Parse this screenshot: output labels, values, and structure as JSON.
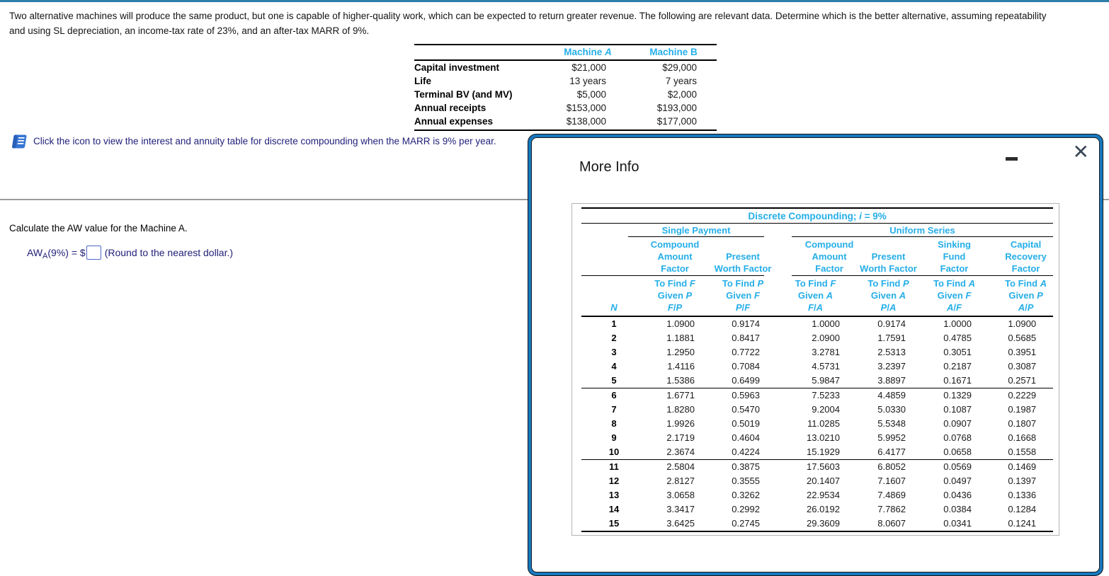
{
  "problem": {
    "line1": "Two alternative machines will produce the same product, but one is capable of higher-quality work, which can be expected to return greater revenue. The following are relevant data. Determine which is the better alternative, assuming repeatability",
    "line2": "and using SL depreciation, an income-tax rate of 23%, and an after-tax MARR of 9%."
  },
  "machine_table": {
    "headers": [
      "Machine A",
      "Machine B"
    ],
    "rows": [
      {
        "label": "Capital investment",
        "a": "$21,000",
        "b": "$29,000"
      },
      {
        "label": "Life",
        "a": "13 years",
        "b": "7 years"
      },
      {
        "label": "Terminal BV (and MV)",
        "a": "$5,000",
        "b": "$2,000"
      },
      {
        "label": "Annual receipts",
        "a": "$153,000",
        "b": "$193,000"
      },
      {
        "label": "Annual expenses",
        "a": "$138,000",
        "b": "$177,000"
      }
    ]
  },
  "icon_note": {
    "icon": "table-book-icon",
    "text": "Click the icon to view the interest and annuity table for discrete compounding when the MARR is 9% per year."
  },
  "question": {
    "prompt": "Calculate the AW value for the Machine A.",
    "formula_prefix": "AW",
    "formula_sub": "A",
    "formula_mid": "(9%) = $",
    "input_value": "",
    "round_note": "(Round to the nearest dollar.)"
  },
  "modal": {
    "title": "More Info",
    "minimize_icon": "minus-icon",
    "close_glyph": "✕",
    "compounding": {
      "title": "Discrete Compounding; i = 9%",
      "groups": [
        {
          "label": "Single Payment"
        },
        {
          "label": "Uniform Series"
        }
      ],
      "n_label": "N",
      "columns": [
        {
          "header": "Compound\nAmount\nFactor",
          "sub": "To Find F\nGiven P\nF/P"
        },
        {
          "header": "Present\nWorth Factor",
          "sub": "To Find P\nGiven F\nP/F"
        },
        {
          "header": "Compound\nAmount\nFactor",
          "sub": "To Find F\nGiven A\nF/A"
        },
        {
          "header": "Present\nWorth Factor",
          "sub": "To Find P\nGiven A\nP/A"
        },
        {
          "header": "Sinking\nFund\nFactor",
          "sub": "To Find A\nGiven F\nA/F"
        },
        {
          "header": "Capital\nRecovery\nFactor",
          "sub": "To Find A\nGiven P\nA/P"
        }
      ],
      "rows": [
        {
          "n": "1",
          "values": [
            "1.0900",
            "0.9174",
            "1.0000",
            "0.9174",
            "1.0000",
            "1.0900"
          ]
        },
        {
          "n": "2",
          "values": [
            "1.1881",
            "0.8417",
            "2.0900",
            "1.7591",
            "0.4785",
            "0.5685"
          ]
        },
        {
          "n": "3",
          "values": [
            "1.2950",
            "0.7722",
            "3.2781",
            "2.5313",
            "0.3051",
            "0.3951"
          ]
        },
        {
          "n": "4",
          "values": [
            "1.4116",
            "0.7084",
            "4.5731",
            "3.2397",
            "0.2187",
            "0.3087"
          ]
        },
        {
          "n": "5",
          "values": [
            "1.5386",
            "0.6499",
            "5.9847",
            "3.8897",
            "0.1671",
            "0.2571"
          ]
        },
        {
          "n": "6",
          "values": [
            "1.6771",
            "0.5963",
            "7.5233",
            "4.4859",
            "0.1329",
            "0.2229"
          ]
        },
        {
          "n": "7",
          "values": [
            "1.8280",
            "0.5470",
            "9.2004",
            "5.0330",
            "0.1087",
            "0.1987"
          ]
        },
        {
          "n": "8",
          "values": [
            "1.9926",
            "0.5019",
            "11.0285",
            "5.5348",
            "0.0907",
            "0.1807"
          ]
        },
        {
          "n": "9",
          "values": [
            "2.1719",
            "0.4604",
            "13.0210",
            "5.9952",
            "0.0768",
            "0.1668"
          ]
        },
        {
          "n": "10",
          "values": [
            "2.3674",
            "0.4224",
            "15.1929",
            "6.4177",
            "0.0658",
            "0.1558"
          ]
        },
        {
          "n": "11",
          "values": [
            "2.5804",
            "0.3875",
            "17.5603",
            "6.8052",
            "0.0569",
            "0.1469"
          ]
        },
        {
          "n": "12",
          "values": [
            "2.8127",
            "0.3555",
            "20.1407",
            "7.1607",
            "0.0497",
            "0.1397"
          ]
        },
        {
          "n": "13",
          "values": [
            "3.0658",
            "0.3262",
            "22.9534",
            "7.4869",
            "0.0436",
            "0.1336"
          ]
        },
        {
          "n": "14",
          "values": [
            "3.3417",
            "0.2992",
            "26.0192",
            "7.7862",
            "0.0384",
            "0.1284"
          ]
        },
        {
          "n": "15",
          "values": [
            "3.6425",
            "0.2745",
            "29.3609",
            "8.0607",
            "0.0341",
            "0.1241"
          ]
        }
      ]
    }
  }
}
